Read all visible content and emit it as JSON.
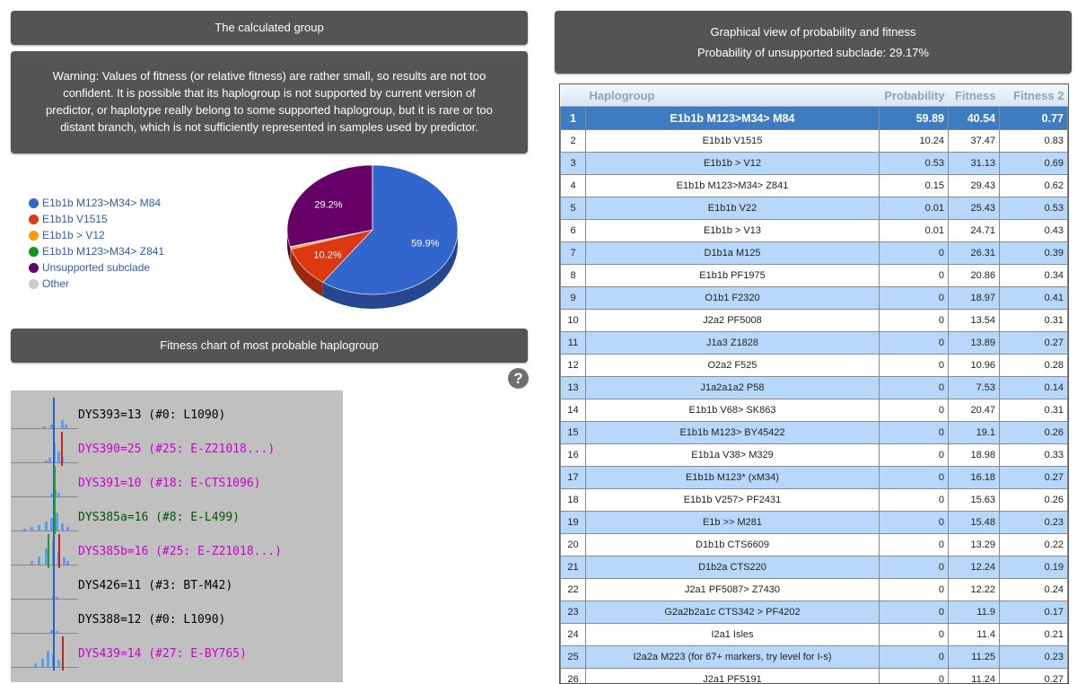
{
  "left": {
    "calculated_header": "The calculated group",
    "warning": "Warning: Values of fitness (or relative fitness) are rather small, so results are not too confident. It is possible that its haplogroup is not supported by current version of predictor, or haplotype really belong to some supported haplogroup, but it is rare or too distant branch, which is not sufficiently represented in samples used by predictor.",
    "fitness_header": "Fitness chart of most probable haplogroup",
    "help_label": "?"
  },
  "legend": [
    {
      "label": "E1b1b M123>M34> M84",
      "color": "#3366cc"
    },
    {
      "label": "E1b1b V1515",
      "color": "#dc3912"
    },
    {
      "label": "E1b1b > V12",
      "color": "#ff9900"
    },
    {
      "label": "E1b1b M123>M34> Z841",
      "color": "#109618"
    },
    {
      "label": "Unsupported subclade",
      "color": "#660066"
    },
    {
      "label": "Other",
      "color": "#cccccc"
    }
  ],
  "chart_data": {
    "type": "pie",
    "title": "",
    "slices": [
      {
        "label": "E1b1b M123>M34> M84",
        "value": 59.89,
        "color": "#3366cc",
        "text": "59.9%"
      },
      {
        "label": "E1b1b V1515",
        "value": 10.24,
        "color": "#dc3912",
        "text": "10.2%"
      },
      {
        "label": "E1b1b > V12",
        "value": 0.53,
        "color": "#ff9900",
        "text": ""
      },
      {
        "label": "E1b1b M123>M34> Z841",
        "value": 0.15,
        "color": "#109618",
        "text": ""
      },
      {
        "label": "Unsupported subclade",
        "value": 29.17,
        "color": "#660066",
        "text": "29.2%"
      },
      {
        "label": "Other",
        "value": 0.02,
        "color": "#cccccc",
        "text": ""
      }
    ]
  },
  "markers": [
    {
      "text": "DYS393=13 (#0: L1090)",
      "color": "#000000"
    },
    {
      "text": "DYS390=25 (#25: E-Z21018...)",
      "color": "#cc00cc"
    },
    {
      "text": "DYS391=10 (#18: E-CTS1096)",
      "color": "#cc00cc"
    },
    {
      "text": "DYS385a=16 (#8: E-L499)",
      "color": "#005500"
    },
    {
      "text": "DYS385b=16 (#25: E-Z21018...)",
      "color": "#cc00cc"
    },
    {
      "text": "DYS426=11 (#3: BT-M42)",
      "color": "#000000"
    },
    {
      "text": "DYS388=12 (#0: L1090)",
      "color": "#000000"
    },
    {
      "text": "DYS439=14 (#27: E-BY765)",
      "color": "#cc00cc"
    }
  ],
  "right": {
    "title": "Graphical view of probability and fitness",
    "subtitle": "Probability of unsupported subclade: 29.17%"
  },
  "table": {
    "headers": [
      "",
      "Haplogroup",
      "Probability",
      "Fitness",
      "Fitness 2"
    ],
    "rows": [
      [
        "1",
        "E1b1b M123>M34> M84",
        "59.89",
        "40.54",
        "0.77"
      ],
      [
        "2",
        "E1b1b V1515",
        "10.24",
        "37.47",
        "0.83"
      ],
      [
        "3",
        "E1b1b > V12",
        "0.53",
        "31.13",
        "0.69"
      ],
      [
        "4",
        "E1b1b M123>M34> Z841",
        "0.15",
        "29.43",
        "0.62"
      ],
      [
        "5",
        "E1b1b V22",
        "0.01",
        "25.43",
        "0.53"
      ],
      [
        "6",
        "E1b1b > V13",
        "0.01",
        "24.71",
        "0.43"
      ],
      [
        "7",
        "D1b1a M125",
        "0",
        "26.31",
        "0.39"
      ],
      [
        "8",
        "E1b1b PF1975",
        "0",
        "20.86",
        "0.34"
      ],
      [
        "9",
        "O1b1 F2320",
        "0",
        "18.97",
        "0.41"
      ],
      [
        "10",
        "J2a2 PF5008",
        "0",
        "13.54",
        "0.31"
      ],
      [
        "11",
        "J1a3 Z1828",
        "0",
        "13.89",
        "0.27"
      ],
      [
        "12",
        "O2a2 F525",
        "0",
        "10.96",
        "0.28"
      ],
      [
        "13",
        "J1a2a1a2 P58",
        "0",
        "7.53",
        "0.14"
      ],
      [
        "14",
        "E1b1b V68> SK863",
        "0",
        "20.47",
        "0.31"
      ],
      [
        "15",
        "E1b1b M123> BY45422",
        "0",
        "19.1",
        "0.26"
      ],
      [
        "16",
        "E1b1a V38> M329",
        "0",
        "18.98",
        "0.33"
      ],
      [
        "17",
        "E1b1b M123* (xM34)",
        "0",
        "16.18",
        "0.27"
      ],
      [
        "18",
        "E1b1b V257> PF2431",
        "0",
        "15.63",
        "0.26"
      ],
      [
        "19",
        "E1b >> M281",
        "0",
        "15.48",
        "0.23"
      ],
      [
        "20",
        "D1b1b CTS6609",
        "0",
        "13.29",
        "0.22"
      ],
      [
        "21",
        "D1b2a CTS220",
        "0",
        "12.24",
        "0.19"
      ],
      [
        "22",
        "J2a1 PF5087> Z7430",
        "0",
        "12.22",
        "0.24"
      ],
      [
        "23",
        "G2a2b2a1c CTS342 > PF4202",
        "0",
        "11.9",
        "0.17"
      ],
      [
        "24",
        "I2a1 Isles",
        "0",
        "11.4",
        "0.21"
      ],
      [
        "25",
        "I2a2a M223 (for 67+ markers, try level for I-s)",
        "0",
        "11.25",
        "0.23"
      ],
      [
        "26",
        "J2a1 PF5191",
        "0",
        "11.24",
        "0.27"
      ]
    ]
  }
}
